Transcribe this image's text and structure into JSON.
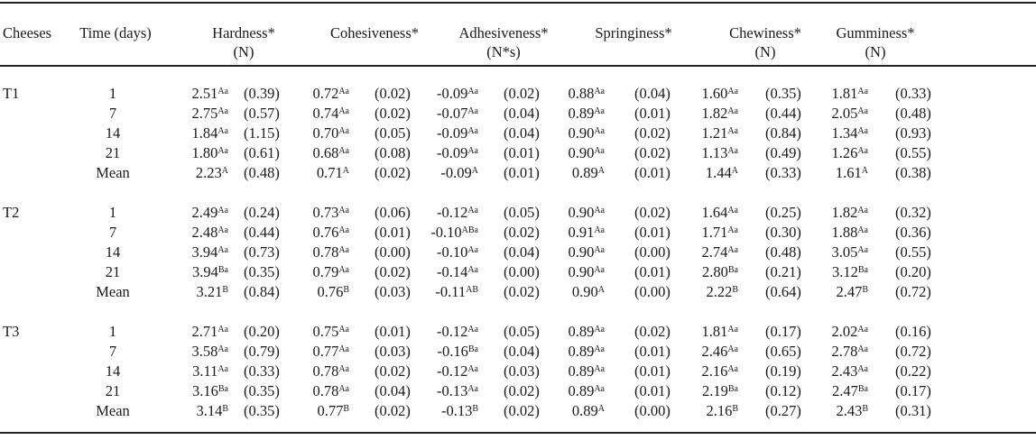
{
  "headers": [
    {
      "key": "cheeses",
      "line1": "Cheeses",
      "line2": ""
    },
    {
      "key": "time",
      "line1": "Time (days)",
      "line2": ""
    },
    {
      "key": "hardness",
      "line1": "Hardness*",
      "line2": "(N)"
    },
    {
      "key": "cohesiveness",
      "line1": "Cohesiveness*",
      "line2": ""
    },
    {
      "key": "adhesiveness",
      "line1": "Adhesiveness*",
      "line2": "(N*s)"
    },
    {
      "key": "springiness",
      "line1": "Springiness*",
      "line2": ""
    },
    {
      "key": "chewiness",
      "line1": "Chewiness*",
      "line2": "(N)"
    },
    {
      "key": "gumminess",
      "line1": "Gumminess*",
      "line2": "(N)"
    }
  ],
  "groups": [
    {
      "name": "T1",
      "rows": [
        {
          "time": "1",
          "cells": [
            {
              "v": "2.51",
              "s": "Aa",
              "sd": "(0.39)"
            },
            {
              "v": "0.72",
              "s": "Aa",
              "sd": "(0.02)"
            },
            {
              "v": "-0.09",
              "s": "Aa",
              "sd": "(0.02)"
            },
            {
              "v": "0.88",
              "s": "Aa",
              "sd": "(0.04)"
            },
            {
              "v": "1.60",
              "s": "Aa",
              "sd": "(0.35)"
            },
            {
              "v": "1.81",
              "s": "Aa",
              "sd": "(0.33)"
            }
          ]
        },
        {
          "time": "7",
          "cells": [
            {
              "v": "2.75",
              "s": "Aa",
              "sd": "(0.57)"
            },
            {
              "v": "0.74",
              "s": "Aa",
              "sd": "(0.02)"
            },
            {
              "v": "-0.07",
              "s": "Aa",
              "sd": "(0.04)"
            },
            {
              "v": "0.89",
              "s": "Aa",
              "sd": "(0.01)"
            },
            {
              "v": "1.82",
              "s": "Aa",
              "sd": "(0.44)"
            },
            {
              "v": "2.05",
              "s": "Aa",
              "sd": "(0.48)"
            }
          ]
        },
        {
          "time": "14",
          "cells": [
            {
              "v": "1.84",
              "s": "Aa",
              "sd": "(1.15)"
            },
            {
              "v": "0.70",
              "s": "Aa",
              "sd": "(0.05)"
            },
            {
              "v": "-0.09",
              "s": "Aa",
              "sd": "(0.04)"
            },
            {
              "v": "0.90",
              "s": "Aa",
              "sd": "(0.02)"
            },
            {
              "v": "1.21",
              "s": "Aa",
              "sd": "(0.84)"
            },
            {
              "v": "1.34",
              "s": "Aa",
              "sd": "(0.93)"
            }
          ]
        },
        {
          "time": "21",
          "cells": [
            {
              "v": "1.80",
              "s": "Aa",
              "sd": "(0.61)"
            },
            {
              "v": "0.68",
              "s": "Aa",
              "sd": "(0.08)"
            },
            {
              "v": "-0.09",
              "s": "Aa",
              "sd": "(0.01)"
            },
            {
              "v": "0.90",
              "s": "Aa",
              "sd": "(0.02)"
            },
            {
              "v": "1.13",
              "s": "Aa",
              "sd": "(0.49)"
            },
            {
              "v": "1.26",
              "s": "Aa",
              "sd": "(0.55)"
            }
          ]
        },
        {
          "time": "Mean",
          "cells": [
            {
              "v": "2.23",
              "s": "A",
              "sd": "(0.48)"
            },
            {
              "v": "0.71",
              "s": "A",
              "sd": "(0.02)"
            },
            {
              "v": "-0.09",
              "s": "A",
              "sd": "(0.01)"
            },
            {
              "v": "0.89",
              "s": "A",
              "sd": "(0.01)"
            },
            {
              "v": "1.44",
              "s": "A",
              "sd": "(0.33)"
            },
            {
              "v": "1.61",
              "s": "A",
              "sd": "(0.38)"
            }
          ]
        }
      ]
    },
    {
      "name": "T2",
      "rows": [
        {
          "time": "1",
          "cells": [
            {
              "v": "2.49",
              "s": "Aa",
              "sd": "(0.24)"
            },
            {
              "v": "0.73",
              "s": "Aa",
              "sd": "(0.06)"
            },
            {
              "v": "-0.12",
              "s": "Aa",
              "sd": "(0.05)"
            },
            {
              "v": "0.90",
              "s": "Aa",
              "sd": "(0.02)"
            },
            {
              "v": "1.64",
              "s": "Aa",
              "sd": "(0.25)"
            },
            {
              "v": "1.82",
              "s": "Aa",
              "sd": "(0.32)"
            }
          ]
        },
        {
          "time": "7",
          "cells": [
            {
              "v": "2.48",
              "s": "Aa",
              "sd": "(0.44)"
            },
            {
              "v": "0.76",
              "s": "Aa",
              "sd": "(0.01)"
            },
            {
              "v": "-0.10",
              "s": "ABa",
              "sd": "(0.02)"
            },
            {
              "v": "0.91",
              "s": "Aa",
              "sd": "(0.01)"
            },
            {
              "v": "1.71",
              "s": "Aa",
              "sd": "(0.30)"
            },
            {
              "v": "1.88",
              "s": "Aa",
              "sd": "(0.36)"
            }
          ]
        },
        {
          "time": "14",
          "cells": [
            {
              "v": "3.94",
              "s": "Aa",
              "sd": "(0.73)"
            },
            {
              "v": "0.78",
              "s": "Aa",
              "sd": "(0.00)"
            },
            {
              "v": "-0.10",
              "s": "Aa",
              "sd": "(0.04)"
            },
            {
              "v": "0.90",
              "s": "Aa",
              "sd": "(0.00)"
            },
            {
              "v": "2.74",
              "s": "Aa",
              "sd": "(0.48)"
            },
            {
              "v": "3.05",
              "s": "Aa",
              "sd": "(0.55)"
            }
          ]
        },
        {
          "time": "21",
          "cells": [
            {
              "v": "3.94",
              "s": "Ba",
              "sd": "(0.35)"
            },
            {
              "v": "0.79",
              "s": "Aa",
              "sd": "(0.02)"
            },
            {
              "v": "-0.14",
              "s": "Aa",
              "sd": "(0.00)"
            },
            {
              "v": "0.90",
              "s": "Aa",
              "sd": "(0.01)"
            },
            {
              "v": "2.80",
              "s": "Ba",
              "sd": "(0.21)"
            },
            {
              "v": "3.12",
              "s": "Ba",
              "sd": "(0.20)"
            }
          ]
        },
        {
          "time": "Mean",
          "cells": [
            {
              "v": "3.21",
              "s": "B",
              "sd": "(0.84)"
            },
            {
              "v": "0.76",
              "s": "B",
              "sd": "(0.03)"
            },
            {
              "v": "-0.11",
              "s": "AB",
              "sd": "(0.02)"
            },
            {
              "v": "0.90",
              "s": "A",
              "sd": "(0.00)"
            },
            {
              "v": "2.22",
              "s": "B",
              "sd": "(0.64)"
            },
            {
              "v": "2.47",
              "s": "B",
              "sd": "(0.72)"
            }
          ]
        }
      ]
    },
    {
      "name": "T3",
      "rows": [
        {
          "time": "1",
          "cells": [
            {
              "v": "2.71",
              "s": "Aa",
              "sd": "(0.20)"
            },
            {
              "v": "0.75",
              "s": "Aa",
              "sd": "(0.01)"
            },
            {
              "v": "-0.12",
              "s": "Aa",
              "sd": "(0.05)"
            },
            {
              "v": "0.89",
              "s": "Aa",
              "sd": "(0.02)"
            },
            {
              "v": "1.81",
              "s": "Aa",
              "sd": "(0.17)"
            },
            {
              "v": "2.02",
              "s": "Aa",
              "sd": "(0.16)"
            }
          ]
        },
        {
          "time": "7",
          "cells": [
            {
              "v": "3.58",
              "s": "Aa",
              "sd": "(0.79)"
            },
            {
              "v": "0.77",
              "s": "Aa",
              "sd": "(0.03)"
            },
            {
              "v": "-0.16",
              "s": "Ba",
              "sd": "(0.04)"
            },
            {
              "v": "0.89",
              "s": "Aa",
              "sd": "(0.01)"
            },
            {
              "v": "2.46",
              "s": "Aa",
              "sd": "(0.65)"
            },
            {
              "v": "2.78",
              "s": "Aa",
              "sd": "(0.72)"
            }
          ]
        },
        {
          "time": "14",
          "cells": [
            {
              "v": "3.11",
              "s": "Aa",
              "sd": "(0.33)"
            },
            {
              "v": "0.78",
              "s": "Aa",
              "sd": "(0.02)"
            },
            {
              "v": "-0.12",
              "s": "Aa",
              "sd": "(0.03)"
            },
            {
              "v": "0.89",
              "s": "Aa",
              "sd": "(0.01)"
            },
            {
              "v": "2.16",
              "s": "Aa",
              "sd": "(0.19)"
            },
            {
              "v": "2.43",
              "s": "Aa",
              "sd": "(0.22)"
            }
          ]
        },
        {
          "time": "21",
          "cells": [
            {
              "v": "3.16",
              "s": "Ba",
              "sd": "(0.35)"
            },
            {
              "v": "0.78",
              "s": "Aa",
              "sd": "(0.04)"
            },
            {
              "v": "-0.13",
              "s": "Aa",
              "sd": "(0.02)"
            },
            {
              "v": "0.89",
              "s": "Aa",
              "sd": "(0.01)"
            },
            {
              "v": "2.19",
              "s": "Ba",
              "sd": "(0.12)"
            },
            {
              "v": "2.47",
              "s": "Ba",
              "sd": "(0.17)"
            }
          ]
        },
        {
          "time": "Mean",
          "cells": [
            {
              "v": "3.14",
              "s": "B",
              "sd": "(0.35)"
            },
            {
              "v": "0.77",
              "s": "B",
              "sd": "(0.02)"
            },
            {
              "v": "-0.13",
              "s": "B",
              "sd": "(0.02)"
            },
            {
              "v": "0.89",
              "s": "A",
              "sd": "(0.00)"
            },
            {
              "v": "2.16",
              "s": "B",
              "sd": "(0.27)"
            },
            {
              "v": "2.43",
              "s": "B",
              "sd": "(0.31)"
            }
          ]
        }
      ]
    }
  ]
}
